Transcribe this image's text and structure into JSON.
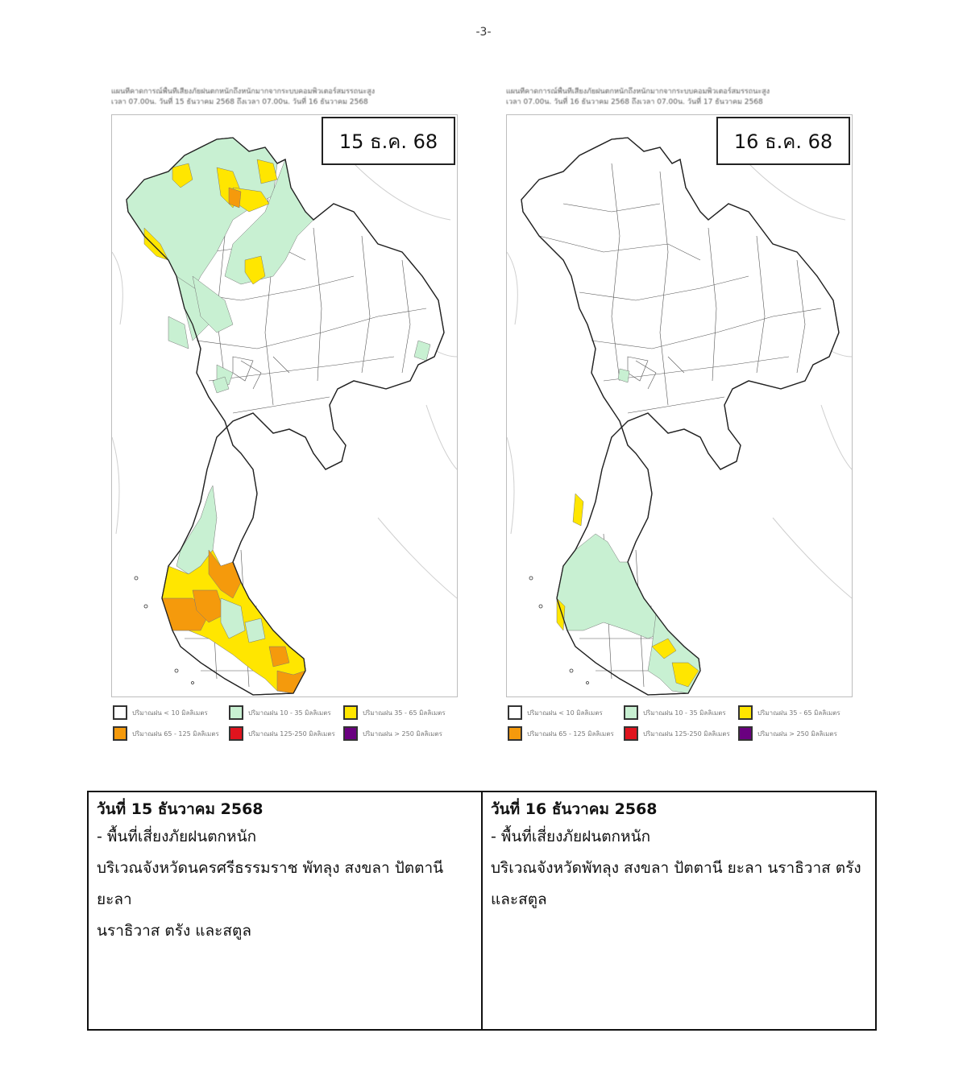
{
  "page_number": "-3-",
  "maps": [
    {
      "caption_line1": "แผนที่คาดการณ์พื้นที่เสี่ยงภัยฝนตกหนักถึงหนักมากจากระบบคอมพิวเตอร์สมรรถนะสูง",
      "caption_line2": "เวลา 07.00น. วันที่ 15 ธันวาคม 2568 ถึงเวลา 07.00น. วันที่ 16 ธันวาคม 2568",
      "date_label": "15 ธ.ค. 68"
    },
    {
      "caption_line1": "แผนที่คาดการณ์พื้นที่เสี่ยงภัยฝนตกหนักถึงหนักมากจากระบบคอมพิวเตอร์สมรรถนะสูง",
      "caption_line2": "เวลา 07.00น. วันที่ 16 ธันวาคม 2568 ถึงเวลา 07.00น. วันที่ 17 ธันวาคม 2568",
      "date_label": "16 ธ.ค. 68"
    }
  ],
  "legend": [
    {
      "label": "ปริมาณฝน < 10 มิลลิเมตร",
      "color": "#ffffff"
    },
    {
      "label": "ปริมาณฝน 10 - 35 มิลลิเมตร",
      "color": "#c8f0d2"
    },
    {
      "label": "ปริมาณฝน 35 - 65 มิลลิเมตร",
      "color": "#ffe600"
    },
    {
      "label": "ปริมาณฝน 65 - 125 มิลลิเมตร",
      "color": "#f59a0c"
    },
    {
      "label": "ปริมาณฝน 125-250 มิลลิเมตร",
      "color": "#e0141e"
    },
    {
      "label": "ปริมาณฝน > 250 มิลลิเมตร",
      "color": "#6a0080"
    }
  ],
  "summary": [
    {
      "date": "วันที่ 15 ธันวาคม 2568",
      "heading": "- พื้นที่เสี่ยงภัยฝนตกหนัก",
      "line1": "บริเวณจังหวัดนครศรีธรรมราช พัทลุง สงขลา ปัตตานี ยะลา",
      "line2": "นราธิวาส ตรัง และสตูล"
    },
    {
      "date": "วันที่ 16 ธันวาคม 2568",
      "heading": "- พื้นที่เสี่ยงภัยฝนตกหนัก",
      "line1": "บริเวณจังหวัดพัทลุง สงขลา ปัตตานี ยะลา นราธิวาส ตรัง",
      "line2": "และสตูล"
    }
  ]
}
